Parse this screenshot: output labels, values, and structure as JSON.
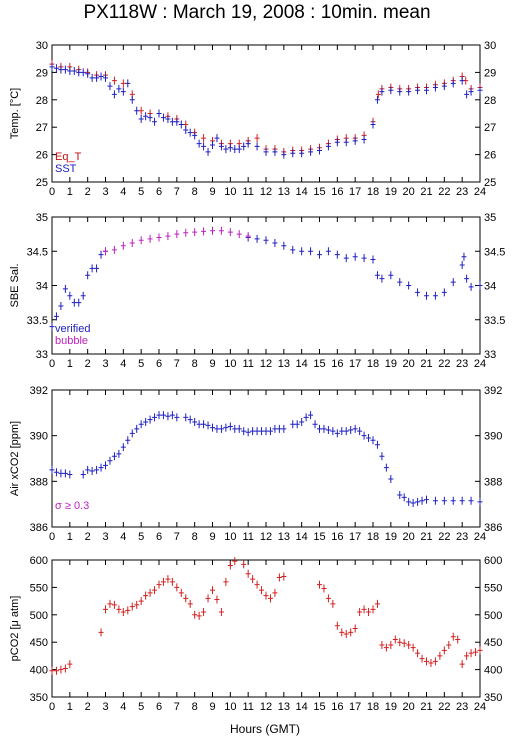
{
  "title": "PX118W : March 19, 2008 : 10min. mean",
  "x_axis": {
    "label": "Hours (GMT)",
    "range": [
      0,
      24
    ],
    "ticks": [
      "0",
      "1",
      "2",
      "3",
      "4",
      "5",
      "6",
      "7",
      "8",
      "9",
      "10",
      "11",
      "12",
      "13",
      "14",
      "15",
      "16",
      "17",
      "18",
      "19",
      "20",
      "21",
      "22",
      "23",
      "24"
    ]
  },
  "colors": {
    "blue": "#2020c0",
    "red": "#d42020",
    "magenta": "#c020c0",
    "annotation_red": "#c01010"
  },
  "chart_data": [
    {
      "type": "scatter",
      "panel": "temperature",
      "ylabel": "Temp. [°C]",
      "ylim": [
        25,
        30
      ],
      "yticks": [
        25,
        26,
        27,
        28,
        29,
        30
      ],
      "legend": [
        {
          "text": "Eq_T",
          "color": "#c01010"
        },
        {
          "text": "SST",
          "color": "#2020c0"
        }
      ],
      "series": [
        {
          "name": "Eq_T",
          "color": "#d42020",
          "x": [
            0,
            0.5,
            1,
            1.5,
            2,
            2.5,
            3,
            3.5,
            4,
            4.5,
            5,
            5.5,
            6,
            6.5,
            7,
            7.5,
            8,
            8.5,
            9,
            9.5,
            10,
            10.5,
            11,
            11.5,
            12,
            12.5,
            13,
            13.5,
            14,
            14.5,
            15,
            15.5,
            16,
            16.5,
            17,
            17.5,
            18,
            18.3,
            18.5,
            19,
            19.5,
            20,
            20.5,
            21,
            21.5,
            22,
            22.5,
            23,
            23.2,
            23.5,
            24
          ],
          "y": [
            29.3,
            29.2,
            29.2,
            29.1,
            29.0,
            28.9,
            28.9,
            28.7,
            28.6,
            28.2,
            27.6,
            27.5,
            27.5,
            27.4,
            27.3,
            27.1,
            26.8,
            26.6,
            26.5,
            26.4,
            26.4,
            26.4,
            26.5,
            26.6,
            26.2,
            26.2,
            26.1,
            26.15,
            26.15,
            26.2,
            26.25,
            26.4,
            26.55,
            26.6,
            26.6,
            26.7,
            27.2,
            28.2,
            28.4,
            28.45,
            28.4,
            28.4,
            28.45,
            28.45,
            28.55,
            28.6,
            28.7,
            28.85,
            28.7,
            28.4,
            28.45
          ]
        },
        {
          "name": "SST",
          "color": "#2020c0",
          "x": [
            0,
            0.25,
            0.5,
            0.75,
            1,
            1.25,
            1.5,
            1.75,
            2,
            2.25,
            2.5,
            2.75,
            3,
            3.25,
            3.5,
            3.75,
            4,
            4.25,
            4.5,
            4.75,
            5,
            5.25,
            5.5,
            5.75,
            6,
            6.25,
            6.5,
            6.75,
            7,
            7.25,
            7.5,
            7.75,
            8,
            8.25,
            8.5,
            8.75,
            9,
            9.25,
            9.5,
            9.75,
            10,
            10.25,
            10.5,
            10.75,
            11,
            11.5,
            12,
            12.5,
            13,
            13.5,
            14,
            14.5,
            15,
            15.5,
            16,
            16.5,
            17,
            17.5,
            18,
            18.25,
            18.5,
            19,
            19.5,
            20,
            20.5,
            21,
            21.5,
            22,
            22.5,
            23,
            23.25,
            23.5,
            24
          ],
          "y": [
            29.2,
            29.15,
            29.1,
            29.1,
            29.05,
            29.05,
            29.0,
            29.0,
            28.95,
            28.8,
            28.8,
            28.85,
            28.8,
            28.5,
            28.2,
            28.4,
            28.3,
            28.6,
            28.0,
            27.6,
            27.3,
            27.4,
            27.35,
            27.2,
            27.5,
            27.35,
            27.3,
            27.2,
            27.2,
            27.1,
            26.9,
            26.8,
            26.7,
            26.4,
            26.3,
            26.1,
            26.35,
            26.6,
            26.3,
            26.2,
            26.25,
            26.2,
            26.2,
            26.3,
            26.4,
            26.3,
            26.1,
            26.1,
            26.0,
            26.05,
            26.05,
            26.1,
            26.15,
            26.3,
            26.45,
            26.45,
            26.5,
            26.55,
            27.1,
            28.0,
            28.3,
            28.35,
            28.3,
            28.3,
            28.35,
            28.35,
            28.45,
            28.5,
            28.6,
            28.7,
            28.2,
            28.3,
            28.35
          ]
        }
      ]
    },
    {
      "type": "scatter",
      "panel": "salinity",
      "ylabel": "SBE Sal.",
      "ylim": [
        33,
        35
      ],
      "yticks": [
        33,
        33.5,
        34,
        34.5,
        35
      ],
      "legend": [
        {
          "text": "verified",
          "color": "#2020c0"
        },
        {
          "text": "bubble",
          "color": "#c020c0"
        }
      ],
      "series": [
        {
          "name": "verified",
          "color": "#2020c0",
          "x": [
            0,
            0.25,
            0.5,
            0.75,
            1,
            1.25,
            1.5,
            1.75,
            2,
            2.25,
            2.5,
            2.75,
            3,
            11,
            11.5,
            12,
            12.5,
            13,
            13.5,
            14,
            14.5,
            15,
            15.5,
            16,
            16.5,
            17,
            17.5,
            18,
            18.25,
            18.5,
            19,
            19.5,
            20,
            20.5,
            21,
            21.5,
            22,
            22.5,
            23,
            23.1,
            23.25,
            23.5,
            24
          ],
          "y": [
            33.4,
            33.55,
            33.7,
            33.95,
            33.85,
            33.75,
            33.75,
            33.85,
            34.15,
            34.25,
            34.25,
            34.45,
            34.5,
            34.7,
            34.68,
            34.66,
            34.62,
            34.58,
            34.52,
            34.5,
            34.5,
            34.45,
            34.5,
            34.45,
            34.4,
            34.42,
            34.4,
            34.38,
            34.15,
            34.1,
            34.15,
            34.05,
            34.0,
            33.9,
            33.85,
            33.85,
            33.9,
            34.05,
            34.3,
            34.42,
            34.1,
            33.98,
            34.0
          ]
        },
        {
          "name": "bubble",
          "color": "#c020c0",
          "x": [
            3,
            3.5,
            4,
            4.5,
            5,
            5.5,
            6,
            6.5,
            7,
            7.5,
            8,
            8.5,
            9,
            9.5,
            10,
            10.5,
            11
          ],
          "y": [
            34.5,
            34.52,
            34.58,
            34.62,
            34.66,
            34.68,
            34.7,
            34.72,
            34.75,
            34.77,
            34.78,
            34.79,
            34.8,
            34.8,
            34.78,
            34.75,
            34.72
          ]
        }
      ]
    },
    {
      "type": "scatter",
      "panel": "air_xco2",
      "ylabel": "Air xCO2 [ppm]",
      "ylim": [
        386,
        392
      ],
      "yticks": [
        386,
        388,
        390,
        392
      ],
      "annotation": {
        "text": "σ ≥ 0.3",
        "color": "#c020c0"
      },
      "series": [
        {
          "name": "",
          "color": "#2020c0",
          "x": [
            0,
            0.25,
            0.5,
            0.75,
            1,
            1.75,
            2,
            2.25,
            2.5,
            2.75,
            3,
            3.25,
            3.5,
            3.75,
            4,
            4.25,
            4.5,
            4.75,
            5,
            5.25,
            5.5,
            5.75,
            6,
            6.25,
            6.5,
            6.75,
            7,
            7.5,
            7.75,
            8,
            8.25,
            8.5,
            8.75,
            9,
            9.25,
            9.5,
            9.75,
            10,
            10.25,
            10.5,
            10.75,
            11,
            11.25,
            11.5,
            11.75,
            12,
            12.25,
            12.5,
            12.75,
            13,
            13.5,
            13.75,
            14,
            14.25,
            14.5,
            14.75,
            15,
            15.25,
            15.5,
            15.75,
            16,
            16.25,
            16.5,
            16.75,
            17,
            17.25,
            17.5,
            17.75,
            18,
            18.25,
            18.5,
            18.75,
            19,
            19.5,
            19.75,
            20,
            20.25,
            20.5,
            20.75,
            21,
            21.5,
            22,
            22.5,
            23,
            23.5,
            24
          ],
          "y": [
            388.5,
            388.4,
            388.35,
            388.35,
            388.3,
            388.3,
            388.5,
            388.45,
            388.5,
            388.6,
            388.7,
            388.9,
            389.1,
            389.2,
            389.5,
            389.8,
            390.1,
            390.3,
            390.5,
            390.6,
            390.7,
            390.8,
            390.9,
            390.9,
            390.85,
            390.9,
            390.8,
            390.8,
            390.7,
            390.6,
            390.5,
            390.5,
            390.45,
            390.35,
            390.3,
            390.3,
            390.35,
            390.4,
            390.3,
            390.3,
            390.2,
            390.15,
            390.2,
            390.2,
            390.2,
            390.2,
            390.2,
            390.3,
            390.3,
            390.3,
            390.5,
            390.5,
            390.6,
            390.8,
            390.9,
            390.5,
            390.3,
            390.3,
            390.25,
            390.2,
            390.1,
            390.2,
            390.2,
            390.25,
            390.3,
            390.2,
            390.0,
            389.9,
            389.8,
            389.6,
            389.1,
            388.6,
            388.1,
            387.4,
            387.3,
            387.1,
            387.05,
            387.1,
            387.15,
            387.2,
            387.15,
            387.15,
            387.15,
            387.15,
            387.15,
            387.1
          ]
        }
      ]
    },
    {
      "type": "scatter",
      "panel": "pco2",
      "ylabel": "pCO2 [μ atm]",
      "ylim": [
        350,
        600
      ],
      "yticks": [
        350,
        400,
        450,
        500,
        550,
        600
      ],
      "series": [
        {
          "name": "",
          "color": "#d42020",
          "x": [
            0,
            0.25,
            0.5,
            0.75,
            1,
            2.75,
            3,
            3.25,
            3.5,
            3.75,
            4,
            4.25,
            4.5,
            4.75,
            5,
            5.25,
            5.5,
            5.75,
            6,
            6.25,
            6.5,
            6.75,
            7,
            7.25,
            7.5,
            7.75,
            8,
            8.25,
            8.5,
            8.75,
            9,
            9.25,
            9.5,
            9.75,
            10,
            10.25,
            10.5,
            10.75,
            11,
            11.25,
            11.5,
            11.75,
            12,
            12.25,
            12.5,
            12.75,
            13,
            15,
            15.25,
            15.5,
            15.75,
            16,
            16.25,
            16.5,
            16.75,
            17,
            17.25,
            17.5,
            17.75,
            18,
            18.25,
            18.5,
            18.75,
            19,
            19.25,
            19.5,
            19.75,
            20,
            20.25,
            20.5,
            20.75,
            21,
            21.25,
            21.5,
            21.75,
            22,
            22.25,
            22.5,
            22.75,
            23,
            23.25,
            23.5,
            23.75,
            24
          ],
          "y": [
            398,
            398,
            400,
            402,
            410,
            468,
            510,
            520,
            518,
            510,
            505,
            508,
            515,
            518,
            525,
            535,
            540,
            545,
            555,
            560,
            565,
            560,
            550,
            540,
            530,
            520,
            500,
            498,
            505,
            530,
            545,
            528,
            505,
            560,
            590,
            598,
            602,
            592,
            575,
            565,
            555,
            545,
            535,
            530,
            540,
            568,
            570,
            555,
            548,
            530,
            520,
            480,
            468,
            465,
            468,
            475,
            505,
            510,
            505,
            510,
            520,
            445,
            440,
            445,
            455,
            450,
            448,
            445,
            440,
            430,
            420,
            415,
            412,
            415,
            425,
            435,
            445,
            460,
            455,
            410,
            425,
            430,
            432,
            435
          ]
        }
      ]
    }
  ]
}
